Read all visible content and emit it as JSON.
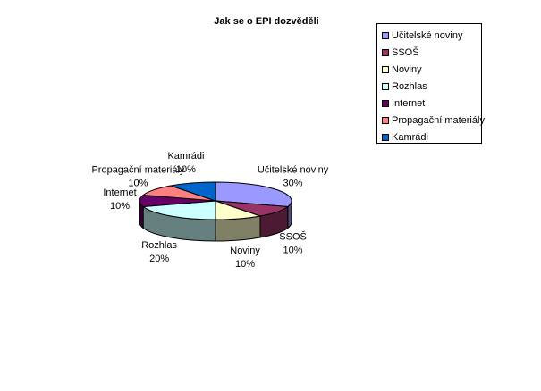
{
  "chart_data": {
    "type": "pie",
    "title": "Jak se o EPI dozvěděli",
    "series": [
      {
        "name": "Učitelské noviny",
        "value": 30,
        "label": "30%",
        "color": "#9999ff"
      },
      {
        "name": "SSOŠ",
        "value": 10,
        "label": "10%",
        "color": "#993366"
      },
      {
        "name": "Noviny",
        "value": 10,
        "label": "10%",
        "color": "#ffffcc"
      },
      {
        "name": "Rozhlas",
        "value": 20,
        "label": "20%",
        "color": "#ccffff"
      },
      {
        "name": "Internet",
        "value": 10,
        "label": "10%",
        "color": "#660066"
      },
      {
        "name": "Propagační materiály",
        "value": 10,
        "label": "10%",
        "color": "#ff8080"
      },
      {
        "name": "Kamrádi",
        "value": 10,
        "label": "10%",
        "color": "#0066cc"
      }
    ],
    "legend_position": "top-right",
    "three_d": true
  }
}
